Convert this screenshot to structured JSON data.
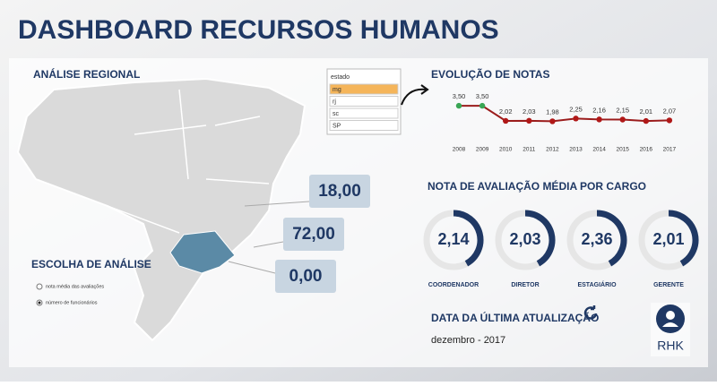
{
  "header": {
    "title": "DASHBOARD RECURSOS HUMANOS"
  },
  "regional": {
    "title": "ANÁLISE REGIONAL",
    "filter": {
      "title": "estado",
      "items": [
        "mg",
        "rj",
        "sc",
        "SP"
      ],
      "selected": 0
    },
    "values": [
      "18,00",
      "72,00",
      "0,00"
    ]
  },
  "analysis": {
    "title": "ESCOLHA DE ANÁLISE",
    "options": [
      "nota média das avaliações",
      "número de funcionários"
    ],
    "selected": 1
  },
  "evolution": {
    "title": "EVOLUÇÃO DE NOTAS",
    "type": "line",
    "categories": [
      "2008",
      "2009",
      "2010",
      "2011",
      "2012",
      "2013",
      "2014",
      "2015",
      "2016",
      "2017"
    ],
    "values": [
      3.5,
      3.5,
      2.02,
      2.03,
      1.98,
      2.25,
      2.16,
      2.15,
      2.01,
      2.07
    ],
    "value_labels": [
      "3,50",
      "3,50",
      "2,02",
      "2,03",
      "1,98",
      "2,25",
      "2,16",
      "2,15",
      "2,01",
      "2,07"
    ],
    "color": "#9b1c1c",
    "point_colors": [
      "#3aa655",
      "#3aa655",
      "#b01818",
      "#b01818",
      "#b01818",
      "#b01818",
      "#b01818",
      "#b01818",
      "#b01818",
      "#b01818"
    ],
    "ylim": [
      0,
      5
    ]
  },
  "cargo": {
    "title": "NOTA DE AVALIAÇÃO MÉDIA POR CARGO",
    "items": [
      {
        "label": "COORDENADOR",
        "value": "2,14"
      },
      {
        "label": "DIRETOR",
        "value": "2,03"
      },
      {
        "label": "ESTAGIÁRIO",
        "value": "2,36"
      },
      {
        "label": "GERENTE",
        "value": "2,01"
      }
    ]
  },
  "update": {
    "title": "DATA DA ÚLTIMA ATUALIZAÇÃO",
    "date": "dezembro - 2017"
  },
  "logo": {
    "text": "RHK"
  }
}
